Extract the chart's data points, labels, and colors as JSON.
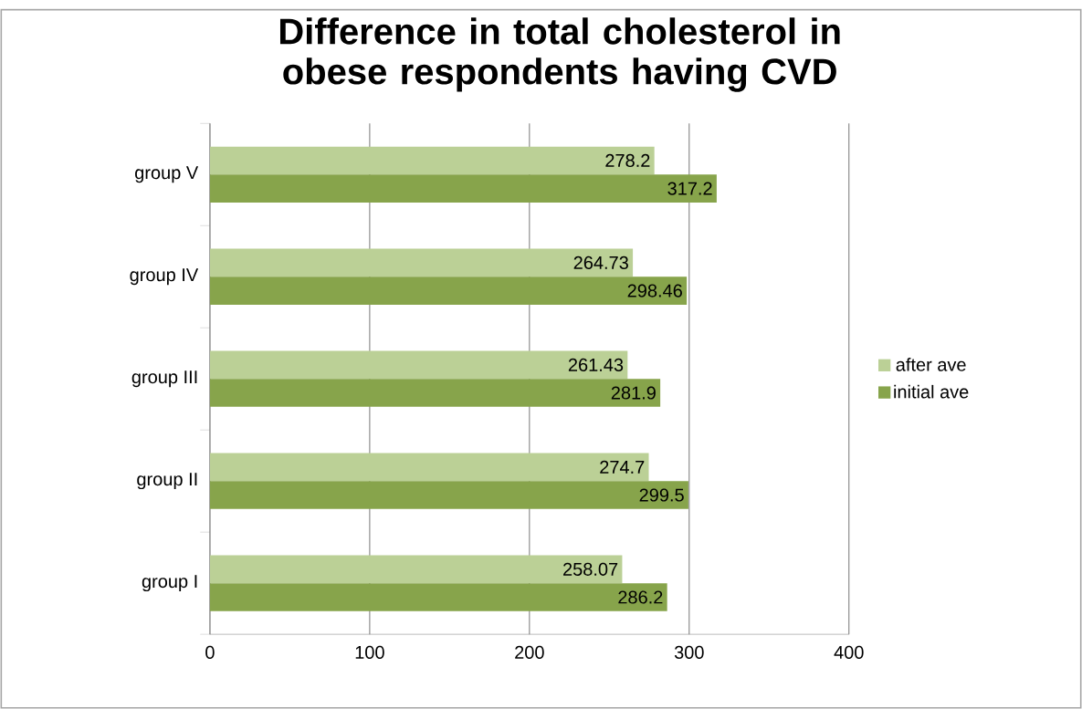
{
  "chart_data": {
    "type": "bar",
    "orientation": "horizontal",
    "title": "Difference in total cholesterol in obese respondents having CVD",
    "categories": [
      "group V",
      "group IV",
      "group III",
      "group II",
      "group I"
    ],
    "series": [
      {
        "name": "after ave",
        "color": "#bbd096",
        "values": [
          278.2,
          264.73,
          261.43,
          274.7,
          258.07
        ]
      },
      {
        "name": "initial ave",
        "color": "#87a44b",
        "values": [
          317.2,
          298.46,
          281.9,
          299.5,
          286.2
        ]
      }
    ],
    "xlim": [
      0,
      400
    ],
    "xticks": [
      0,
      100,
      200,
      300,
      400
    ],
    "grid": "x",
    "legend": "right",
    "data_labels": true
  }
}
